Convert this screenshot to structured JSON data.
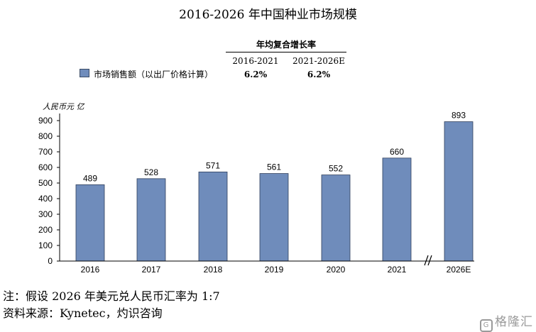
{
  "chart_data": {
    "type": "bar",
    "title": "2016-2026 年中国种业市场规模",
    "ylabel": "人民币元 亿",
    "categories": [
      "2016",
      "2017",
      "2018",
      "2019",
      "2020",
      "2021",
      "2026E"
    ],
    "series": [
      {
        "name": "市场销售额（以出厂价格计算）",
        "values": [
          489,
          528,
          571,
          561,
          552,
          660,
          893
        ]
      }
    ],
    "ylim": [
      0,
      900
    ],
    "yticks": [
      "0",
      "100",
      "200",
      "300",
      "400",
      "500",
      "600",
      "700",
      "800",
      "900"
    ],
    "axis_break": "//",
    "bar_color": "#6f8cbb",
    "grid": false,
    "legend_position": "top-left"
  },
  "cagr": {
    "heading": "年均复合增长率",
    "periods": [
      "2016-2021",
      "2021-2026E"
    ],
    "values": [
      "6.2%",
      "6.2%"
    ]
  },
  "notes": {
    "note": "注：假设 2026 年美元兑人民币汇率为 1:7",
    "source": "资料来源：Kynetec，灼识咨询"
  },
  "watermark": {
    "logo_glyph": "G",
    "text": "格隆汇"
  }
}
